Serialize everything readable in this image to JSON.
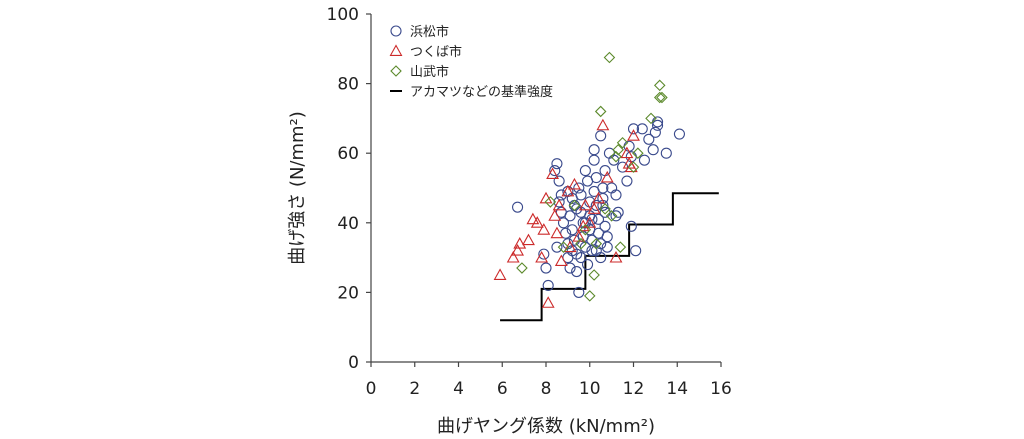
{
  "chart_data": {
    "type": "scatter",
    "title": "",
    "xlabel": "曲げヤング係数 (kN/mm²)",
    "ylabel": "曲げ強さ (N/mm²)",
    "xlim": [
      0,
      16
    ],
    "ylim": [
      0,
      100
    ],
    "xticks": [
      0,
      2,
      4,
      6,
      8,
      10,
      12,
      14,
      16
    ],
    "yticks": [
      0,
      20,
      40,
      60,
      80,
      100
    ],
    "grid": false,
    "legend_position": "top-left",
    "series": [
      {
        "name": "浜松市",
        "marker": "circle",
        "color": "#3a4a8c",
        "points": [
          [
            6.7,
            44.5
          ],
          [
            7.9,
            31
          ],
          [
            8.0,
            27
          ],
          [
            8.1,
            22
          ],
          [
            8.4,
            55
          ],
          [
            8.5,
            57
          ],
          [
            8.6,
            52
          ],
          [
            8.6,
            46
          ],
          [
            8.7,
            43
          ],
          [
            8.8,
            40
          ],
          [
            8.9,
            37
          ],
          [
            9.0,
            34
          ],
          [
            9.0,
            30
          ],
          [
            9.1,
            42
          ],
          [
            9.2,
            38
          ],
          [
            9.3,
            45
          ],
          [
            9.3,
            35
          ],
          [
            9.4,
            31
          ],
          [
            9.4,
            26
          ],
          [
            9.5,
            20
          ],
          [
            9.5,
            50
          ],
          [
            9.6,
            48
          ],
          [
            9.6,
            43
          ],
          [
            9.7,
            40
          ],
          [
            9.7,
            36
          ],
          [
            9.8,
            33
          ],
          [
            9.8,
            55
          ],
          [
            9.9,
            52
          ],
          [
            9.9,
            28
          ],
          [
            10.0,
            46
          ],
          [
            10.0,
            42
          ],
          [
            10.0,
            38
          ],
          [
            10.1,
            35
          ],
          [
            10.1,
            32
          ],
          [
            10.2,
            58
          ],
          [
            10.2,
            61
          ],
          [
            10.2,
            49
          ],
          [
            10.3,
            53
          ],
          [
            10.3,
            45
          ],
          [
            10.4,
            41
          ],
          [
            10.4,
            37
          ],
          [
            10.5,
            34
          ],
          [
            10.5,
            30
          ],
          [
            10.5,
            65
          ],
          [
            10.6,
            50
          ],
          [
            10.6,
            47
          ],
          [
            10.7,
            43
          ],
          [
            10.7,
            39
          ],
          [
            10.8,
            36
          ],
          [
            10.8,
            33
          ],
          [
            9.2,
            47
          ],
          [
            9.8,
            40
          ],
          [
            10.9,
            60
          ],
          [
            11.1,
            58
          ],
          [
            11.2,
            48
          ],
          [
            11.3,
            43
          ],
          [
            11.5,
            56
          ],
          [
            11.7,
            52
          ],
          [
            11.8,
            62
          ],
          [
            11.9,
            59
          ],
          [
            11.9,
            39
          ],
          [
            12.0,
            67
          ],
          [
            12.1,
            32
          ],
          [
            12.4,
            67
          ],
          [
            12.5,
            58
          ],
          [
            12.7,
            64
          ],
          [
            12.9,
            61
          ],
          [
            13.0,
            66
          ],
          [
            13.1,
            69
          ],
          [
            13.1,
            68
          ],
          [
            13.5,
            60
          ],
          [
            14.1,
            65.5
          ],
          [
            8.7,
            48
          ],
          [
            9.0,
            49
          ],
          [
            9.4,
            44
          ],
          [
            10.1,
            41
          ],
          [
            10.6,
            45
          ],
          [
            11.0,
            50
          ],
          [
            8.5,
            33
          ],
          [
            9.2,
            32
          ],
          [
            9.6,
            30
          ],
          [
            10.3,
            32
          ],
          [
            11.2,
            42
          ],
          [
            9.1,
            27
          ],
          [
            10.7,
            55
          ]
        ]
      },
      {
        "name": "つくば市",
        "marker": "triangle",
        "color": "#cc2a2a",
        "points": [
          [
            5.9,
            25
          ],
          [
            6.5,
            30
          ],
          [
            6.7,
            32
          ],
          [
            6.8,
            34
          ],
          [
            7.2,
            35
          ],
          [
            7.4,
            41
          ],
          [
            7.6,
            40
          ],
          [
            7.8,
            30
          ],
          [
            7.9,
            38
          ],
          [
            8.0,
            47
          ],
          [
            8.1,
            17
          ],
          [
            8.3,
            54
          ],
          [
            8.4,
            42
          ],
          [
            8.5,
            37
          ],
          [
            8.6,
            45
          ],
          [
            8.7,
            29
          ],
          [
            9.0,
            49
          ],
          [
            9.3,
            51
          ],
          [
            9.5,
            36
          ],
          [
            9.7,
            39
          ],
          [
            10.0,
            40
          ],
          [
            10.2,
            44
          ],
          [
            10.4,
            47
          ],
          [
            10.6,
            68
          ],
          [
            10.8,
            53
          ],
          [
            11.2,
            30
          ],
          [
            11.7,
            60
          ],
          [
            11.8,
            57
          ],
          [
            12.0,
            65
          ],
          [
            11.9,
            56
          ],
          [
            9.1,
            33
          ],
          [
            9.8,
            45
          ]
        ]
      },
      {
        "name": "山武市",
        "marker": "diamond",
        "color": "#5c8a2c",
        "points": [
          [
            6.9,
            27
          ],
          [
            8.2,
            46
          ],
          [
            8.8,
            33
          ],
          [
            9.3,
            45
          ],
          [
            9.6,
            34
          ],
          [
            9.8,
            38
          ],
          [
            10.0,
            19
          ],
          [
            10.2,
            25
          ],
          [
            10.3,
            34
          ],
          [
            10.5,
            72
          ],
          [
            10.7,
            44
          ],
          [
            10.9,
            87.5
          ],
          [
            11.0,
            42
          ],
          [
            11.2,
            59
          ],
          [
            11.3,
            61
          ],
          [
            11.4,
            33
          ],
          [
            11.5,
            63
          ],
          [
            12.0,
            56
          ],
          [
            12.2,
            60
          ],
          [
            12.8,
            70
          ],
          [
            13.2,
            76
          ],
          [
            13.2,
            79.5
          ],
          [
            13.3,
            76
          ]
        ]
      }
    ],
    "reference_line": {
      "name": "アカマツなどの基準強度",
      "color": "#000000",
      "points": [
        [
          5.9,
          12
        ],
        [
          7.8,
          12
        ],
        [
          7.8,
          21
        ],
        [
          9.8,
          21
        ],
        [
          9.8,
          30.5
        ],
        [
          11.8,
          30.5
        ],
        [
          11.8,
          39.5
        ],
        [
          13.8,
          39.5
        ],
        [
          13.8,
          48.5
        ],
        [
          15.9,
          48.5
        ]
      ]
    }
  }
}
